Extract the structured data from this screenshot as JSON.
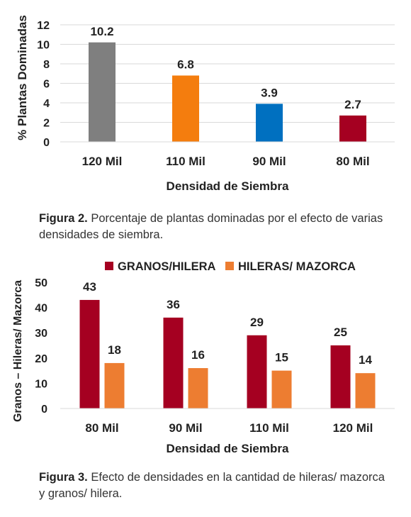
{
  "colors": {
    "gray": "#7f7f7f",
    "orange": "#f47d0e",
    "blue": "#0070c0",
    "red": "#a50021",
    "light_orange": "#ed7d31",
    "gridline": "#d9d9d9",
    "text": "#222222"
  },
  "chart_data": [
    {
      "type": "bar",
      "categories": [
        "120 Mil",
        "110 Mil",
        "90 Mil",
        "80 Mil"
      ],
      "values": [
        10.2,
        6.8,
        3.9,
        2.7
      ],
      "value_labels": [
        "10.2",
        "6.8",
        "3.9",
        "2.7"
      ],
      "bar_colors": [
        "#7f7f7f",
        "#f47d0e",
        "#0070c0",
        "#a50021"
      ],
      "xlabel": "Densidad de Siembra",
      "ylabel": "% Plantas Dominadas",
      "ylim": [
        0,
        12
      ],
      "yticks": [
        "0",
        "2",
        "4",
        "6",
        "8",
        "10",
        "12"
      ],
      "grid": true,
      "legend": "none"
    },
    {
      "type": "bar",
      "categories": [
        "80 Mil",
        "90 Mil",
        "110 Mil",
        "120 Mil"
      ],
      "series": [
        {
          "name": "GRANOS/HILERA",
          "values": [
            43,
            36,
            29,
            25
          ],
          "value_labels": [
            "43",
            "36",
            "29",
            "25"
          ],
          "color": "#a50021"
        },
        {
          "name": "HILERAS/ MAZORCA",
          "values": [
            18,
            16,
            15,
            14
          ],
          "value_labels": [
            "18",
            "16",
            "15",
            "14"
          ],
          "color": "#ed7d31"
        }
      ],
      "xlabel": "Densidad de Siembra",
      "ylabel": "Granos – Hileras/ Mazorca",
      "ylim": [
        0,
        50
      ],
      "yticks": [
        "0",
        "10",
        "20",
        "30",
        "40",
        "50"
      ],
      "grid": false,
      "legend": "top"
    }
  ],
  "captions": {
    "fig2_label": "Figura 2.",
    "fig2_text": " Porcentaje de plantas dominadas por el efecto de varias densidades de siembra.",
    "fig3_label": "Figura 3.",
    "fig3_text": " Efecto de densidades en la cantidad de hileras/ mazorca y granos/ hilera."
  }
}
